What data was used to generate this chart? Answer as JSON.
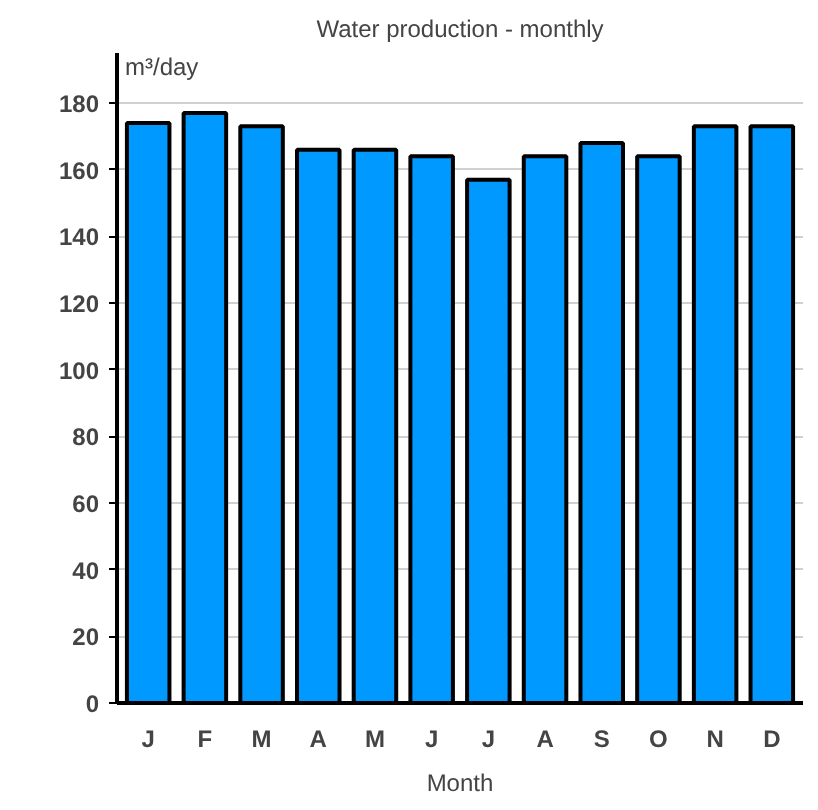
{
  "chart_data": {
    "type": "bar",
    "title": "Water production - monthly",
    "ylabel": "m³/day",
    "xlabel": "Month",
    "categories": [
      "J",
      "F",
      "M",
      "A",
      "M",
      "J",
      "J",
      "A",
      "S",
      "O",
      "N",
      "D"
    ],
    "values": [
      174,
      177,
      173,
      166,
      166,
      164,
      157,
      164,
      168,
      164,
      173,
      173
    ],
    "color": "#0099ff",
    "ylim": [
      0,
      195
    ],
    "yticks": [
      0,
      20,
      40,
      60,
      80,
      100,
      120,
      140,
      160,
      180
    ],
    "grid": "y"
  }
}
